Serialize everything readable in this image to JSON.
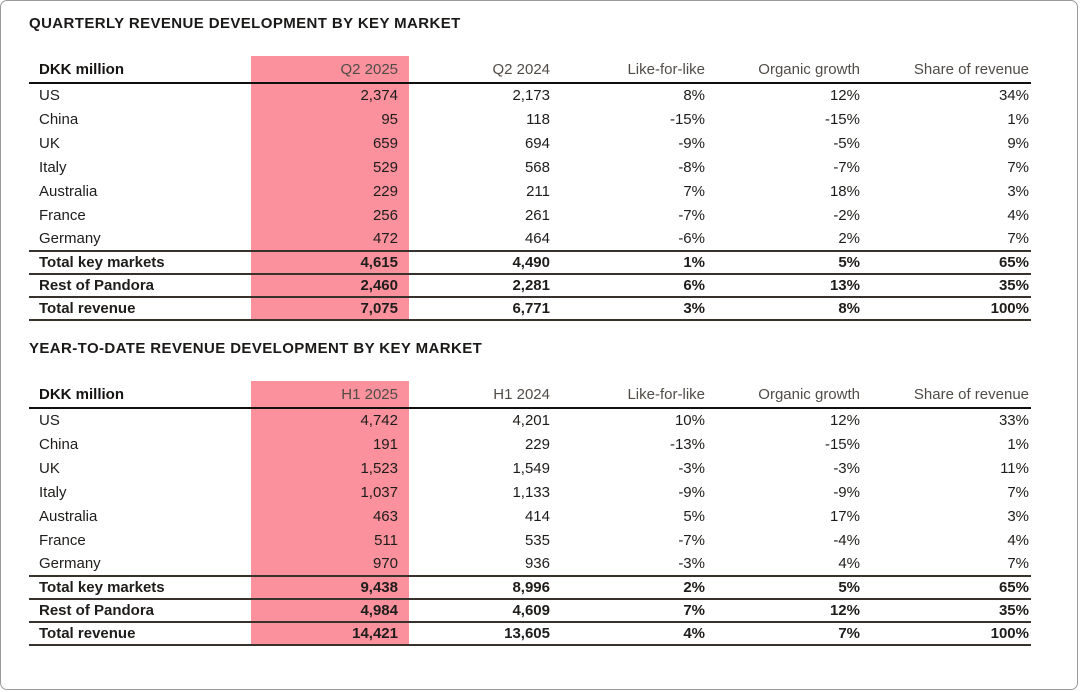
{
  "page": {
    "background": "#ffffff",
    "border_color": "#9a9a9a"
  },
  "colors": {
    "highlight_pink": "#FB919D",
    "header_text": "#514c47",
    "body_text": "#1f1d1b",
    "heavy_rule": "#101010",
    "total_rule": "#38322c"
  },
  "tables": [
    {
      "title": "QUARTERLY REVENUE DEVELOPMENT BY KEY MARKET",
      "unit_label": "DKK million",
      "columns": [
        "DKK million",
        "Q2 2025",
        "Q2 2024",
        "Like-for-like",
        "Organic growth",
        "Share of revenue"
      ],
      "highlighted_column": "Q2 2025",
      "rows": [
        {
          "label": "US",
          "values": [
            "2,374",
            "2,173",
            "8%",
            "12%",
            "34%"
          ],
          "total": false
        },
        {
          "label": "China",
          "values": [
            "95",
            "118",
            "-15%",
            "-15%",
            "1%"
          ],
          "total": false
        },
        {
          "label": "UK",
          "values": [
            "659",
            "694",
            "-9%",
            "-5%",
            "9%"
          ],
          "total": false
        },
        {
          "label": "Italy",
          "values": [
            "529",
            "568",
            "-8%",
            "-7%",
            "7%"
          ],
          "total": false
        },
        {
          "label": "Australia",
          "values": [
            "229",
            "211",
            "7%",
            "18%",
            "3%"
          ],
          "total": false
        },
        {
          "label": "France",
          "values": [
            "256",
            "261",
            "-7%",
            "-2%",
            "4%"
          ],
          "total": false
        },
        {
          "label": "Germany",
          "values": [
            "472",
            "464",
            "-6%",
            "2%",
            "7%"
          ],
          "total": false
        },
        {
          "label": "Total key markets",
          "values": [
            "4,615",
            "4,490",
            "1%",
            "5%",
            "65%"
          ],
          "total": true
        },
        {
          "label": "Rest of Pandora",
          "values": [
            "2,460",
            "2,281",
            "6%",
            "13%",
            "35%"
          ],
          "total": true
        },
        {
          "label": "Total revenue",
          "values": [
            "7,075",
            "6,771",
            "3%",
            "8%",
            "100%"
          ],
          "total": true
        }
      ]
    },
    {
      "title": "YEAR-TO-DATE REVENUE DEVELOPMENT BY KEY MARKET",
      "unit_label": "DKK million",
      "columns": [
        "DKK million",
        "H1 2025",
        "H1 2024",
        "Like-for-like",
        "Organic growth",
        "Share of revenue"
      ],
      "highlighted_column": "H1 2025",
      "rows": [
        {
          "label": "US",
          "values": [
            "4,742",
            "4,201",
            "10%",
            "12%",
            "33%"
          ],
          "total": false
        },
        {
          "label": "China",
          "values": [
            "191",
            "229",
            "-13%",
            "-15%",
            "1%"
          ],
          "total": false
        },
        {
          "label": "UK",
          "values": [
            "1,523",
            "1,549",
            "-3%",
            "-3%",
            "11%"
          ],
          "total": false
        },
        {
          "label": "Italy",
          "values": [
            "1,037",
            "1,133",
            "-9%",
            "-9%",
            "7%"
          ],
          "total": false
        },
        {
          "label": "Australia",
          "values": [
            "463",
            "414",
            "5%",
            "17%",
            "3%"
          ],
          "total": false
        },
        {
          "label": "France",
          "values": [
            "511",
            "535",
            "-7%",
            "-4%",
            "4%"
          ],
          "total": false
        },
        {
          "label": "Germany",
          "values": [
            "970",
            "936",
            "-3%",
            "4%",
            "7%"
          ],
          "total": false
        },
        {
          "label": "Total key markets",
          "values": [
            "9,438",
            "8,996",
            "2%",
            "5%",
            "65%"
          ],
          "total": true
        },
        {
          "label": "Rest of Pandora",
          "values": [
            "4,984",
            "4,609",
            "7%",
            "12%",
            "35%"
          ],
          "total": true
        },
        {
          "label": "Total revenue",
          "values": [
            "14,421",
            "13,605",
            "4%",
            "7%",
            "100%"
          ],
          "total": true
        }
      ]
    }
  ]
}
